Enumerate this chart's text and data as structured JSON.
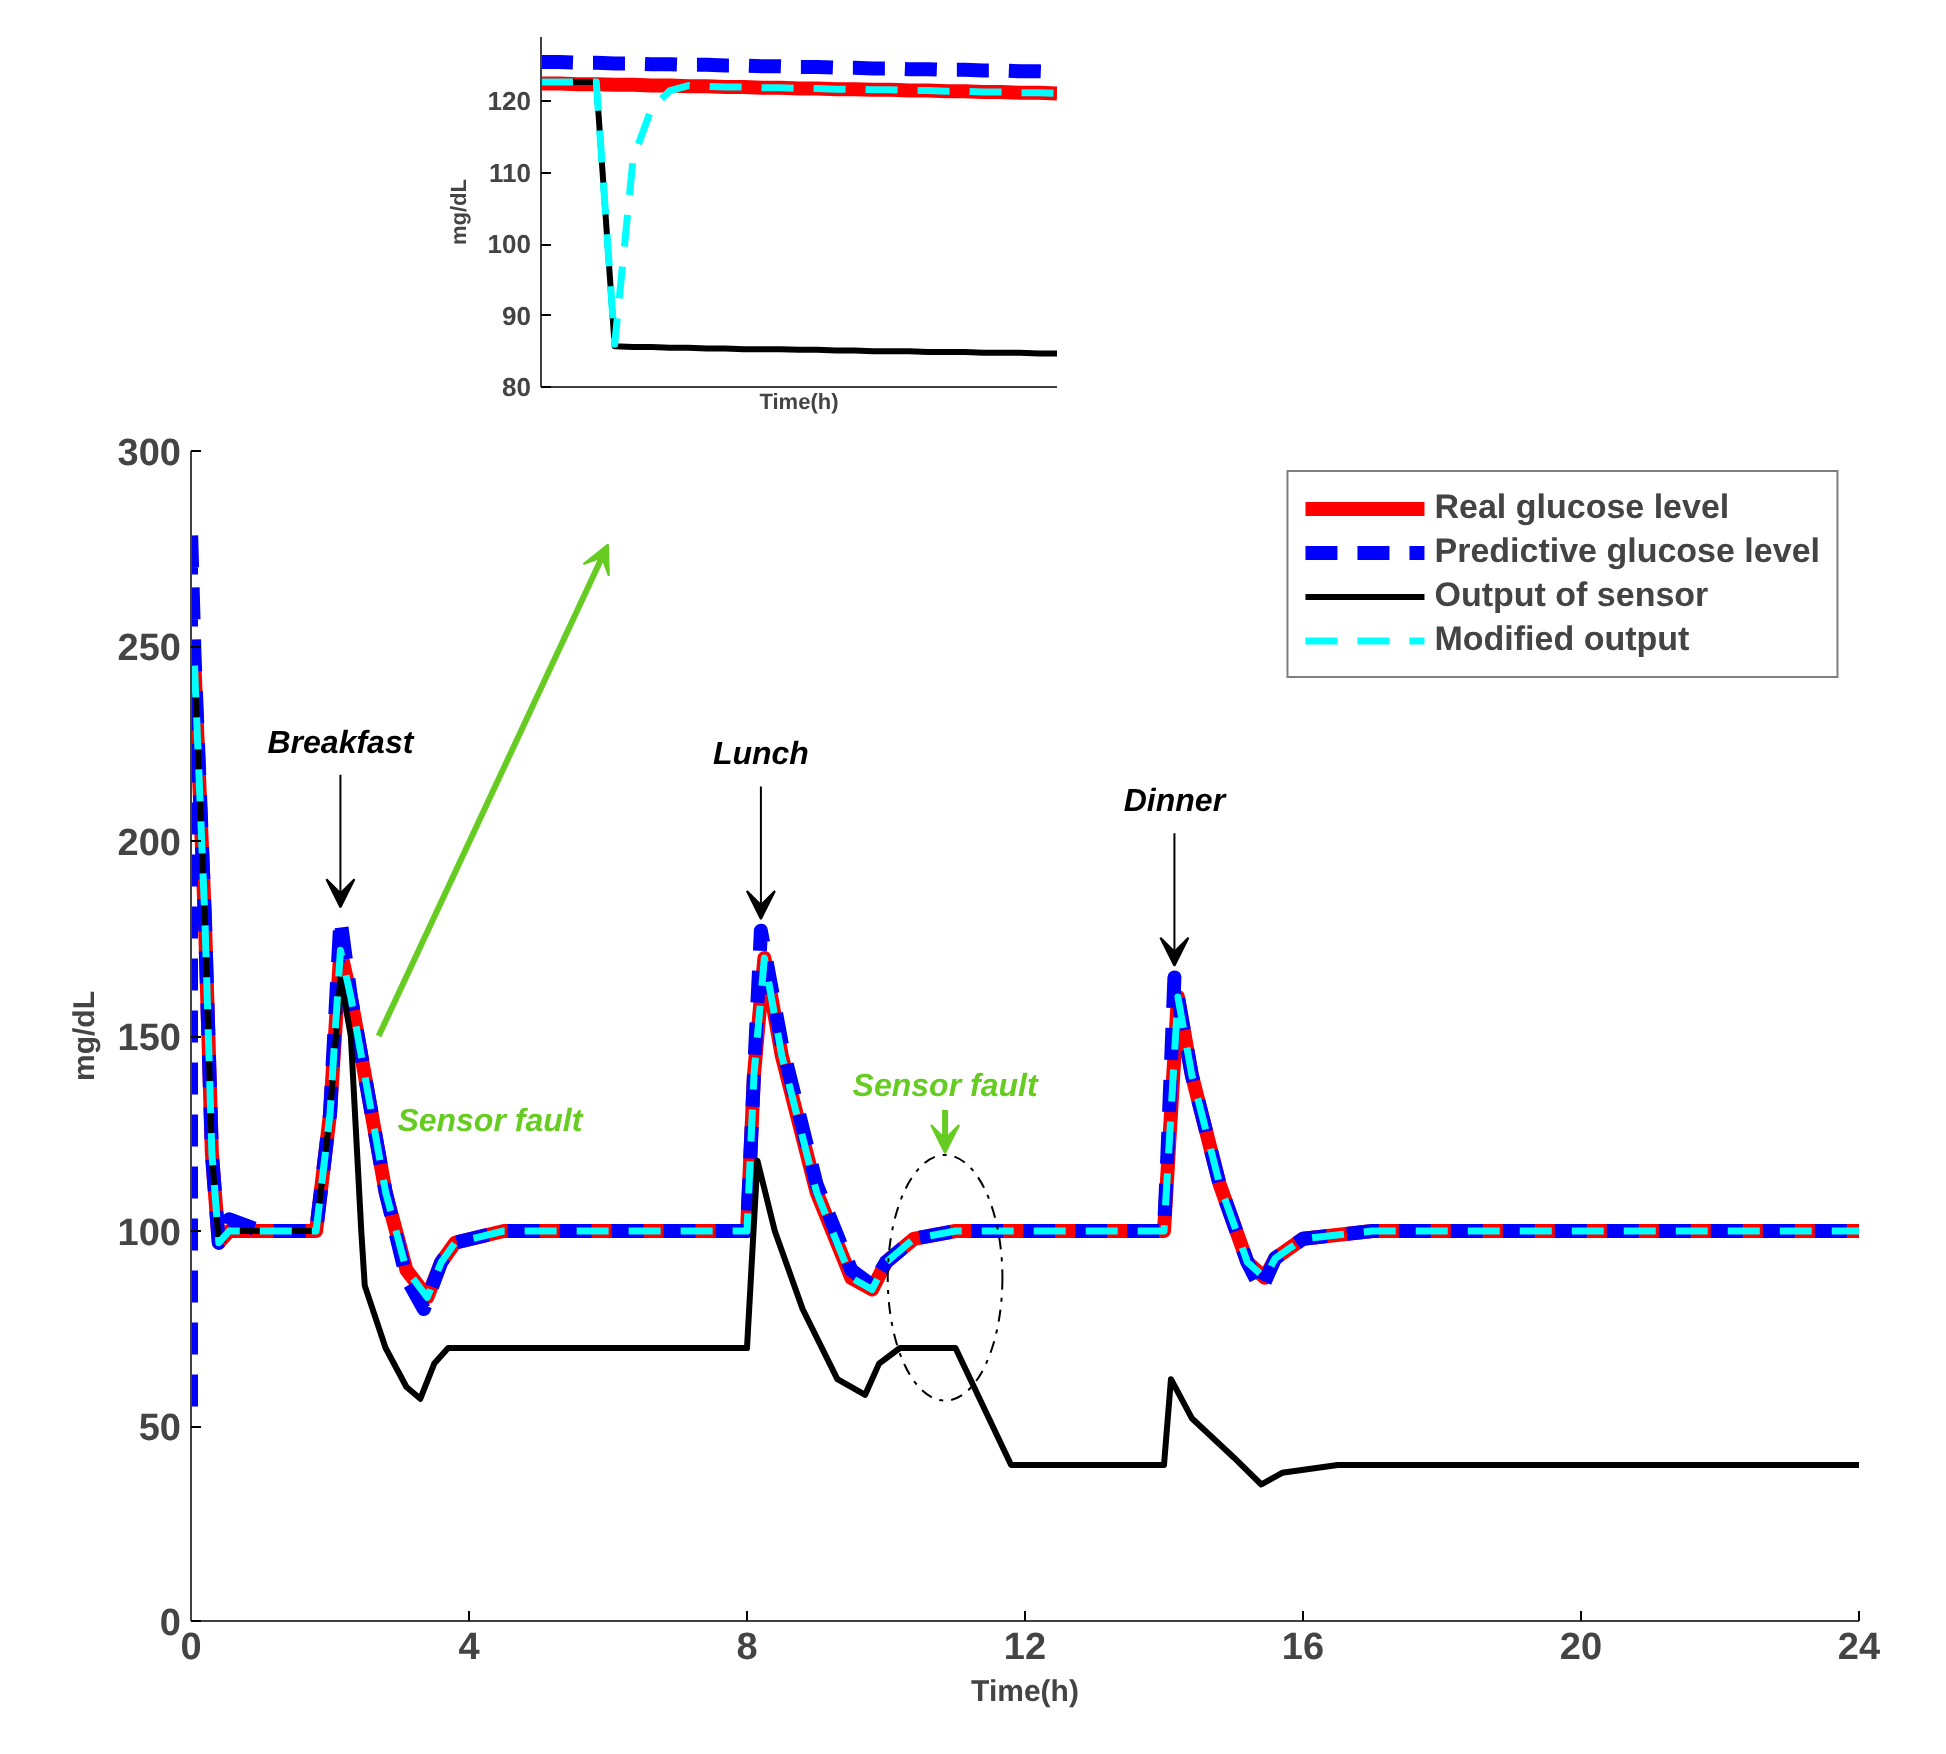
{
  "chart_data": [
    {
      "type": "line",
      "ylabel": "mg/dL",
      "xlabel": "Time(h)",
      "categories": [
        null,
        null,
        null,
        null,
        null,
        null,
        null,
        null,
        null,
        null,
        null,
        null,
        null,
        null,
        null,
        null,
        null,
        null,
        null,
        null,
        null,
        null,
        null,
        null,
        null,
        null,
        null,
        null,
        null
      ],
      "ylim": [
        80,
        129
      ],
      "yticks": [
        80,
        90,
        100,
        110,
        120
      ],
      "grid": false,
      "series": [
        {
          "color": "#ff0000",
          "line_style": "solid",
          "values": [
            122.5,
            122.5,
            122.4,
            122.4,
            122.3,
            122.3,
            122.2,
            122.2,
            122.1,
            122.1,
            122.0,
            122.0,
            121.9,
            121.9,
            121.8,
            121.8,
            121.7,
            121.7,
            121.6,
            121.6,
            121.5,
            121.5,
            121.4,
            121.4,
            121.3,
            121.3,
            121.2,
            121.2,
            121.1
          ]
        },
        {
          "color": "#0000ff",
          "line_style": "dashed",
          "values": [
            125.5,
            125.5,
            125.4,
            125.4,
            125.3,
            125.3,
            125.2,
            125.2,
            125.1,
            125.1,
            125.0,
            125.0,
            124.9,
            124.9,
            124.8,
            124.8,
            124.7,
            124.7,
            124.6,
            124.6,
            124.5,
            124.5,
            124.4,
            124.4,
            124.3,
            124.3,
            124.2,
            124.2,
            124.1
          ]
        },
        {
          "color": "#000000",
          "line_style": "solid",
          "values": [
            122.7,
            122.7,
            122.7,
            122.7,
            85.7,
            85.6,
            85.6,
            85.5,
            85.5,
            85.4,
            85.4,
            85.3,
            85.3,
            85.3,
            85.2,
            85.2,
            85.1,
            85.1,
            85.0,
            85.0,
            85.0,
            84.9,
            84.9,
            84.9,
            84.8,
            84.8,
            84.8,
            84.7,
            84.7
          ]
        },
        {
          "color": "#00ffff",
          "line_style": "dashed",
          "values": [
            122.7,
            122.7,
            122.7,
            122.7,
            86.0,
            112.0,
            119.0,
            121.5,
            122.2,
            122.1,
            122.0,
            122.0,
            121.9,
            121.9,
            121.8,
            121.8,
            121.7,
            121.7,
            121.6,
            121.6,
            121.5,
            121.5,
            121.4,
            121.4,
            121.3,
            121.3,
            121.2,
            121.2,
            121.1
          ]
        }
      ]
    },
    {
      "type": "line",
      "xlabel": "Time(h)",
      "ylabel": "mg/dL",
      "xlim": [
        0,
        24
      ],
      "ylim": [
        0,
        300
      ],
      "xticks": [
        0,
        4,
        8,
        12,
        16,
        20,
        24
      ],
      "yticks": [
        0,
        50,
        100,
        150,
        200,
        250,
        300
      ],
      "grid": false,
      "legend": "top right",
      "marker": "none",
      "series": [
        {
          "name": "Real glucose level",
          "color": "#ff0000",
          "line_style": "solid",
          "x": [
            0.05,
            0.2,
            0.3,
            0.4,
            0.55,
            1,
            1.8,
            2.0,
            2.15,
            2.3,
            2.5,
            2.8,
            3.1,
            3.4,
            3.6,
            3.8,
            4.5,
            8,
            8.1,
            8.25,
            8.5,
            9,
            9.5,
            9.8,
            10.0,
            10.4,
            11,
            14,
            14.1,
            14.2,
            14.4,
            14.8,
            15.2,
            15.45,
            15.6,
            16,
            17,
            24
          ],
          "values": [
            245,
            180,
            120,
            97,
            100,
            100,
            100,
            130,
            172,
            160,
            140,
            110,
            90,
            83,
            92,
            97,
            100,
            100,
            140,
            170,
            145,
            110,
            88,
            85,
            92,
            98,
            100,
            100,
            130,
            160,
            140,
            112,
            92,
            88,
            93,
            98,
            100,
            100
          ]
        },
        {
          "name": "Predictive glucose level",
          "color": "#0000ff",
          "line_style": "dashed",
          "x": [
            0,
            0,
            0.05,
            0.2,
            0.3,
            0.4,
            0.55,
            1,
            1.8,
            2.0,
            2.15,
            2.3,
            2.5,
            2.8,
            3.1,
            3.35,
            3.6,
            3.8,
            4.5,
            8,
            8.1,
            8.2,
            8.5,
            9,
            9.5,
            9.8,
            10.0,
            10.4,
            11,
            14,
            14.05,
            14.15,
            14.4,
            14.8,
            15.2,
            15.4,
            15.6,
            16,
            17,
            24
          ],
          "values": [
            55,
            280,
            248,
            180,
            120,
            97,
            103,
            100,
            100,
            130,
            180,
            160,
            140,
            110,
            88,
            80,
            92,
            97,
            100,
            100,
            140,
            177,
            148,
            112,
            90,
            86,
            92,
            98,
            100,
            100,
            120,
            165,
            140,
            112,
            92,
            85,
            93,
            98,
            100,
            100
          ]
        },
        {
          "name": "Output of sensor",
          "color": "#000000",
          "line_style": "solid",
          "x": [
            0.05,
            0.2,
            0.3,
            0.4,
            0.55,
            1,
            1.8,
            2.0,
            2.15,
            2.3,
            2.45,
            2.5,
            2.8,
            3.1,
            3.3,
            3.5,
            3.7,
            8,
            8.15,
            8.4,
            8.8,
            9.3,
            9.7,
            9.9,
            10.2,
            11,
            11.8,
            14.0,
            14.1,
            14.4,
            15,
            15.4,
            15.7,
            16.5,
            24
          ],
          "values": [
            245,
            180,
            120,
            97,
            100,
            100,
            100,
            130,
            165,
            150,
            100,
            86,
            70,
            60,
            57,
            66,
            70,
            70,
            118,
            100,
            80,
            62,
            58,
            66,
            70,
            70,
            40,
            40,
            62,
            52,
            42,
            35,
            38,
            40,
            40
          ]
        },
        {
          "name": "Modified output",
          "color": "#00ffff",
          "line_style": "dashed",
          "x": [
            0.05,
            0.2,
            0.3,
            0.4,
            0.55,
            1,
            1.8,
            2.0,
            2.15,
            2.3,
            2.5,
            2.8,
            3.1,
            3.4,
            3.6,
            3.8,
            4.5,
            8,
            8.1,
            8.25,
            8.5,
            9,
            9.5,
            9.8,
            10.0,
            10.4,
            11,
            14,
            14.1,
            14.2,
            14.4,
            14.8,
            15.2,
            15.45,
            15.6,
            16,
            17,
            24
          ],
          "values": [
            245,
            180,
            120,
            97,
            100,
            100,
            100,
            130,
            172,
            160,
            140,
            110,
            90,
            83,
            92,
            97,
            100,
            100,
            140,
            170,
            145,
            110,
            88,
            85,
            92,
            98,
            100,
            100,
            130,
            160,
            140,
            112,
            92,
            88,
            93,
            98,
            100,
            100
          ]
        }
      ],
      "annotations": [
        {
          "text": "Breakfast",
          "x": 2.15,
          "y": 180
        },
        {
          "text": "Lunch",
          "x": 8.2,
          "y": 177
        },
        {
          "text": "Dinner",
          "x": 14.15,
          "y": 165
        },
        "Sensor fault",
        "Sensor fault"
      ]
    }
  ]
}
